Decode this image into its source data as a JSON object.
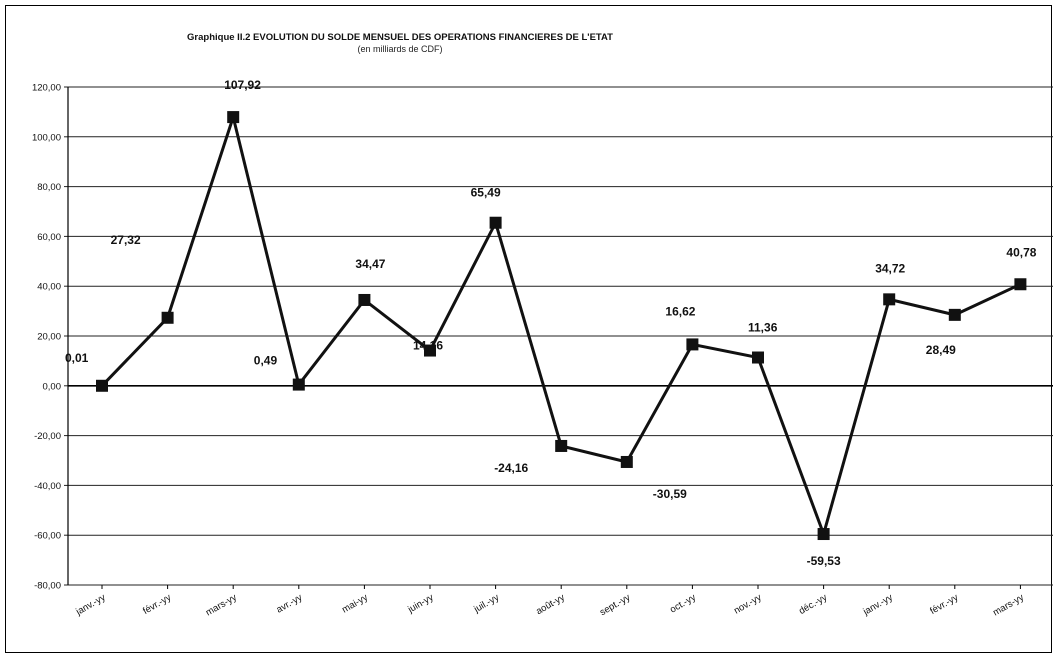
{
  "chart_data": {
    "type": "line",
    "title": "Graphique II.2  EVOLUTION DU SOLDE MENSUEL DES OPERATIONS FINANCIERES DE L'ETAT",
    "subtitle": "(en milliards de CDF)",
    "xlabel": "",
    "ylabel": "",
    "ylim": [
      -80,
      120
    ],
    "ytick_step": 20,
    "ytick_labels": [
      "120,00",
      "100,00",
      "80,00",
      "60,00",
      "40,00",
      "20,00",
      "0,00",
      "-20,00",
      "-40,00",
      "-60,00",
      "-80,00"
    ],
    "grid": true,
    "legend": "none",
    "categories": [
      "janv.-yy",
      "févr.-yy",
      "mars-yy",
      "avr.-yy",
      "mai-yy",
      "juin-yy",
      "juil.-yy",
      "août-yy",
      "sept.-yy",
      "oct.-yy",
      "nov.-yy",
      "déc.-yy",
      "janv.-yy",
      "févr.-yy",
      "mars-yy"
    ],
    "series": [
      {
        "values": [
          0.01,
          27.32,
          107.92,
          0.49,
          34.47,
          14.16,
          65.49,
          -24.16,
          -30.59,
          16.62,
          11.36,
          -59.53,
          34.72,
          28.49,
          40.78
        ],
        "data_labels": [
          "0,01",
          "27,32",
          "107,92",
          "0,49",
          "34,47",
          "14,16",
          "65,49",
          "-24,16",
          "-30,59",
          "16,62",
          "11,36",
          "-59,53",
          "34,72",
          "28,49",
          "40,78"
        ]
      }
    ],
    "colors": {
      "line": "#111111",
      "grid": "#222222",
      "text": "#111111"
    }
  }
}
